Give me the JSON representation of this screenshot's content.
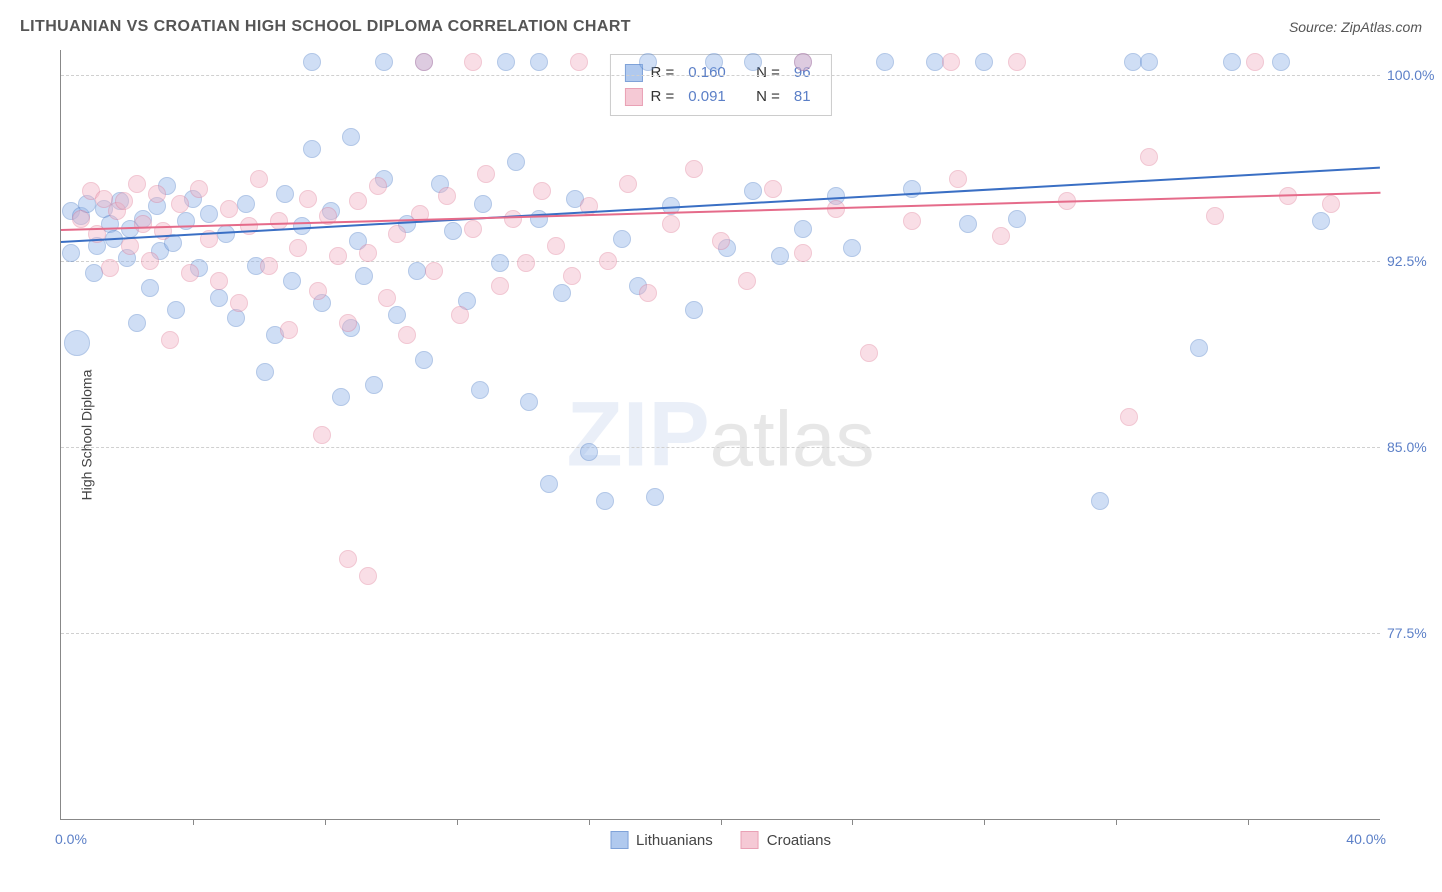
{
  "header": {
    "title": "LITHUANIAN VS CROATIAN HIGH SCHOOL DIPLOMA CORRELATION CHART",
    "source": "Source: ZipAtlas.com"
  },
  "watermark": {
    "prefix": "ZIP",
    "suffix": "atlas"
  },
  "chart": {
    "type": "scatter",
    "background_color": "#ffffff",
    "grid_color": "#d0d0d0",
    "axis_color": "#888888",
    "tick_label_color": "#5b7fc7",
    "ylabel": "High School Diploma",
    "ylabel_color": "#444444",
    "label_fontsize": 14,
    "xlim": [
      0.0,
      40.0
    ],
    "ylim": [
      70.0,
      101.0
    ],
    "xticks": [
      0.0,
      40.0
    ],
    "xtick_labels": [
      "0.0%",
      "40.0%"
    ],
    "xtick_marks": [
      4,
      8,
      12,
      16,
      20,
      24,
      28,
      32,
      36
    ],
    "yticks": [
      77.5,
      85.0,
      92.5,
      100.0
    ],
    "ytick_labels": [
      "77.5%",
      "85.0%",
      "92.5%",
      "100.0%"
    ],
    "marker_size": 18,
    "marker_size_large": 26,
    "marker_opacity": 0.42,
    "marker_border_opacity": 0.85,
    "series": [
      {
        "name": "Lithuanians",
        "fill_color": "#8fb3e8",
        "border_color": "#4a7bc8",
        "r_label": "R =",
        "r_value": "0.160",
        "n_label": "N =",
        "n_value": "96",
        "trend": {
          "y_at_xmin": 93.3,
          "y_at_xmax": 96.3,
          "color": "#3a6fc4",
          "width": 2
        },
        "points": [
          {
            "x": 0.3,
            "y": 94.5
          },
          {
            "x": 0.3,
            "y": 92.8
          },
          {
            "x": 0.5,
            "y": 89.2,
            "s": 26
          },
          {
            "x": 0.6,
            "y": 94.3
          },
          {
            "x": 0.8,
            "y": 94.8
          },
          {
            "x": 1.0,
            "y": 92.0
          },
          {
            "x": 1.1,
            "y": 93.1
          },
          {
            "x": 1.3,
            "y": 94.6
          },
          {
            "x": 1.5,
            "y": 94.0
          },
          {
            "x": 1.6,
            "y": 93.4
          },
          {
            "x": 1.8,
            "y": 94.9
          },
          {
            "x": 2.0,
            "y": 92.6
          },
          {
            "x": 2.1,
            "y": 93.8
          },
          {
            "x": 2.3,
            "y": 90.0
          },
          {
            "x": 2.5,
            "y": 94.2
          },
          {
            "x": 2.7,
            "y": 91.4
          },
          {
            "x": 2.9,
            "y": 94.7
          },
          {
            "x": 3.0,
            "y": 92.9
          },
          {
            "x": 3.2,
            "y": 95.5
          },
          {
            "x": 3.4,
            "y": 93.2
          },
          {
            "x": 3.5,
            "y": 90.5
          },
          {
            "x": 3.8,
            "y": 94.1
          },
          {
            "x": 4.0,
            "y": 95.0
          },
          {
            "x": 4.2,
            "y": 92.2
          },
          {
            "x": 4.5,
            "y": 94.4
          },
          {
            "x": 4.8,
            "y": 91.0
          },
          {
            "x": 5.0,
            "y": 93.6
          },
          {
            "x": 5.3,
            "y": 90.2
          },
          {
            "x": 5.6,
            "y": 94.8
          },
          {
            "x": 5.9,
            "y": 92.3
          },
          {
            "x": 6.2,
            "y": 88.0
          },
          {
            "x": 6.5,
            "y": 89.5
          },
          {
            "x": 6.8,
            "y": 95.2
          },
          {
            "x": 7.0,
            "y": 91.7
          },
          {
            "x": 7.3,
            "y": 93.9
          },
          {
            "x": 7.6,
            "y": 97.0
          },
          {
            "x": 7.6,
            "y": 100.5
          },
          {
            "x": 7.9,
            "y": 90.8
          },
          {
            "x": 8.2,
            "y": 94.5
          },
          {
            "x": 8.5,
            "y": 87.0
          },
          {
            "x": 8.8,
            "y": 89.8
          },
          {
            "x": 8.8,
            "y": 97.5
          },
          {
            "x": 9.0,
            "y": 93.3
          },
          {
            "x": 9.2,
            "y": 91.9
          },
          {
            "x": 9.5,
            "y": 87.5
          },
          {
            "x": 9.8,
            "y": 95.8
          },
          {
            "x": 9.8,
            "y": 100.5
          },
          {
            "x": 10.2,
            "y": 90.3
          },
          {
            "x": 10.5,
            "y": 94.0
          },
          {
            "x": 10.8,
            "y": 92.1
          },
          {
            "x": 11.0,
            "y": 88.5
          },
          {
            "x": 11.0,
            "y": 100.5
          },
          {
            "x": 11.5,
            "y": 95.6
          },
          {
            "x": 11.9,
            "y": 93.7
          },
          {
            "x": 12.3,
            "y": 90.9
          },
          {
            "x": 12.7,
            "y": 87.3
          },
          {
            "x": 12.8,
            "y": 94.8
          },
          {
            "x": 13.3,
            "y": 92.4
          },
          {
            "x": 13.5,
            "y": 100.5
          },
          {
            "x": 13.8,
            "y": 96.5
          },
          {
            "x": 14.2,
            "y": 86.8
          },
          {
            "x": 14.5,
            "y": 94.2
          },
          {
            "x": 14.5,
            "y": 100.5
          },
          {
            "x": 14.8,
            "y": 83.5
          },
          {
            "x": 15.2,
            "y": 91.2
          },
          {
            "x": 15.6,
            "y": 95.0
          },
          {
            "x": 16.0,
            "y": 84.8
          },
          {
            "x": 16.5,
            "y": 82.8
          },
          {
            "x": 17.0,
            "y": 93.4
          },
          {
            "x": 17.5,
            "y": 91.5
          },
          {
            "x": 17.8,
            "y": 100.5
          },
          {
            "x": 18.0,
            "y": 83.0
          },
          {
            "x": 18.5,
            "y": 94.7
          },
          {
            "x": 19.2,
            "y": 90.5
          },
          {
            "x": 19.8,
            "y": 100.5
          },
          {
            "x": 20.2,
            "y": 93.0
          },
          {
            "x": 21.0,
            "y": 95.3
          },
          {
            "x": 21.0,
            "y": 100.5
          },
          {
            "x": 21.8,
            "y": 92.7
          },
          {
            "x": 22.5,
            "y": 93.8
          },
          {
            "x": 22.5,
            "y": 100.5
          },
          {
            "x": 23.5,
            "y": 95.1
          },
          {
            "x": 24.0,
            "y": 93.0
          },
          {
            "x": 25.0,
            "y": 100.5
          },
          {
            "x": 25.8,
            "y": 95.4
          },
          {
            "x": 26.5,
            "y": 100.5
          },
          {
            "x": 27.5,
            "y": 94.0
          },
          {
            "x": 28.0,
            "y": 100.5
          },
          {
            "x": 29.0,
            "y": 94.2
          },
          {
            "x": 31.5,
            "y": 82.8
          },
          {
            "x": 32.5,
            "y": 100.5
          },
          {
            "x": 33.0,
            "y": 100.5
          },
          {
            "x": 34.5,
            "y": 89.0
          },
          {
            "x": 35.5,
            "y": 100.5
          },
          {
            "x": 37.0,
            "y": 100.5
          },
          {
            "x": 38.2,
            "y": 94.1
          }
        ]
      },
      {
        "name": "Croatians",
        "fill_color": "#f2b3c4",
        "border_color": "#e07a96",
        "r_label": "R =",
        "r_value": "0.091",
        "n_label": "N =",
        "n_value": "81",
        "trend": {
          "y_at_xmin": 93.8,
          "y_at_xmax": 95.3,
          "color": "#e56b8a",
          "width": 2
        },
        "points": [
          {
            "x": 0.6,
            "y": 94.2
          },
          {
            "x": 0.9,
            "y": 95.3
          },
          {
            "x": 1.1,
            "y": 93.6
          },
          {
            "x": 1.3,
            "y": 95.0
          },
          {
            "x": 1.5,
            "y": 92.2
          },
          {
            "x": 1.7,
            "y": 94.5
          },
          {
            "x": 1.9,
            "y": 94.9
          },
          {
            "x": 2.1,
            "y": 93.1
          },
          {
            "x": 2.3,
            "y": 95.6
          },
          {
            "x": 2.5,
            "y": 94.0
          },
          {
            "x": 2.7,
            "y": 92.5
          },
          {
            "x": 2.9,
            "y": 95.2
          },
          {
            "x": 3.1,
            "y": 93.7
          },
          {
            "x": 3.3,
            "y": 89.3
          },
          {
            "x": 3.6,
            "y": 94.8
          },
          {
            "x": 3.9,
            "y": 92.0
          },
          {
            "x": 4.2,
            "y": 95.4
          },
          {
            "x": 4.5,
            "y": 93.4
          },
          {
            "x": 4.8,
            "y": 91.7
          },
          {
            "x": 5.1,
            "y": 94.6
          },
          {
            "x": 5.4,
            "y": 90.8
          },
          {
            "x": 5.7,
            "y": 93.9
          },
          {
            "x": 6.0,
            "y": 95.8
          },
          {
            "x": 6.3,
            "y": 92.3
          },
          {
            "x": 6.6,
            "y": 94.1
          },
          {
            "x": 6.9,
            "y": 89.7
          },
          {
            "x": 7.2,
            "y": 93.0
          },
          {
            "x": 7.5,
            "y": 95.0
          },
          {
            "x": 7.8,
            "y": 91.3
          },
          {
            "x": 7.9,
            "y": 85.5
          },
          {
            "x": 8.1,
            "y": 94.3
          },
          {
            "x": 8.4,
            "y": 92.7
          },
          {
            "x": 8.7,
            "y": 80.5
          },
          {
            "x": 8.7,
            "y": 90.0
          },
          {
            "x": 9.0,
            "y": 94.9
          },
          {
            "x": 9.3,
            "y": 79.8
          },
          {
            "x": 9.3,
            "y": 92.8
          },
          {
            "x": 9.6,
            "y": 95.5
          },
          {
            "x": 9.9,
            "y": 91.0
          },
          {
            "x": 10.2,
            "y": 93.6
          },
          {
            "x": 10.5,
            "y": 89.5
          },
          {
            "x": 10.9,
            "y": 94.4
          },
          {
            "x": 11.0,
            "y": 100.5
          },
          {
            "x": 11.3,
            "y": 92.1
          },
          {
            "x": 11.7,
            "y": 95.1
          },
          {
            "x": 12.1,
            "y": 90.3
          },
          {
            "x": 12.5,
            "y": 93.8
          },
          {
            "x": 12.5,
            "y": 100.5
          },
          {
            "x": 12.9,
            "y": 96.0
          },
          {
            "x": 13.3,
            "y": 91.5
          },
          {
            "x": 13.7,
            "y": 94.2
          },
          {
            "x": 14.1,
            "y": 92.4
          },
          {
            "x": 14.6,
            "y": 95.3
          },
          {
            "x": 15.0,
            "y": 93.1
          },
          {
            "x": 15.5,
            "y": 91.9
          },
          {
            "x": 15.7,
            "y": 100.5
          },
          {
            "x": 16.0,
            "y": 94.7
          },
          {
            "x": 16.6,
            "y": 92.5
          },
          {
            "x": 17.2,
            "y": 95.6
          },
          {
            "x": 17.8,
            "y": 91.2
          },
          {
            "x": 18.5,
            "y": 94.0
          },
          {
            "x": 19.2,
            "y": 96.2
          },
          {
            "x": 20.0,
            "y": 93.3
          },
          {
            "x": 20.8,
            "y": 91.7
          },
          {
            "x": 21.6,
            "y": 95.4
          },
          {
            "x": 22.5,
            "y": 92.8
          },
          {
            "x": 22.5,
            "y": 100.5
          },
          {
            "x": 23.5,
            "y": 94.6
          },
          {
            "x": 24.5,
            "y": 88.8
          },
          {
            "x": 25.8,
            "y": 94.1
          },
          {
            "x": 27.0,
            "y": 100.5
          },
          {
            "x": 27.2,
            "y": 95.8
          },
          {
            "x": 28.5,
            "y": 93.5
          },
          {
            "x": 29.0,
            "y": 100.5
          },
          {
            "x": 30.5,
            "y": 94.9
          },
          {
            "x": 32.4,
            "y": 86.2
          },
          {
            "x": 33.0,
            "y": 96.7
          },
          {
            "x": 35.0,
            "y": 94.3
          },
          {
            "x": 36.2,
            "y": 100.5
          },
          {
            "x": 37.2,
            "y": 95.1
          },
          {
            "x": 38.5,
            "y": 94.8
          }
        ]
      }
    ]
  },
  "legend_bottom": {
    "items": [
      {
        "label": "Lithuanians",
        "fill_color": "#8fb3e8",
        "border_color": "#4a7bc8"
      },
      {
        "label": "Croatians",
        "fill_color": "#f2b3c4",
        "border_color": "#e07a96"
      }
    ]
  }
}
